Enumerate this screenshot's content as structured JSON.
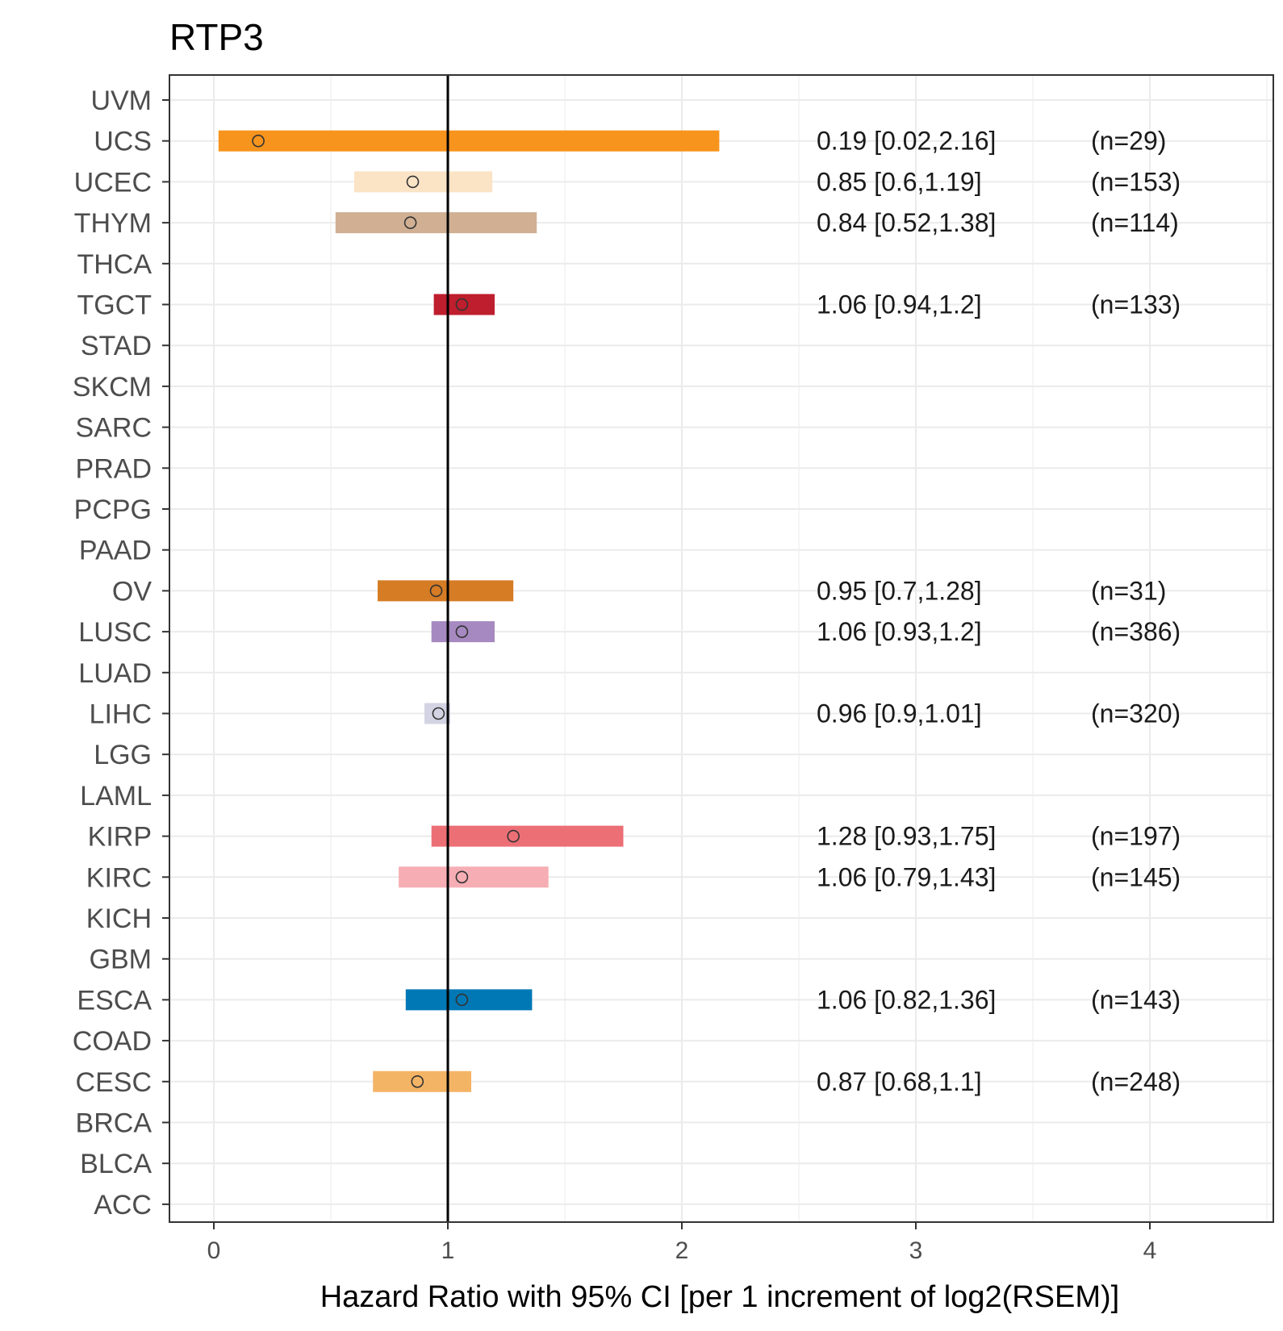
{
  "chart_data": {
    "type": "bar",
    "title": "RTP3",
    "xlabel": "Hazard Ratio with 95% CI [per 1 increment of log2(RSEM)]",
    "xlim": [
      -0.2,
      4.5
    ],
    "xticks": [
      0,
      1,
      2,
      3,
      4
    ],
    "reference_line": 1,
    "grid": true,
    "categories": [
      "UVM",
      "UCS",
      "UCEC",
      "THYM",
      "THCA",
      "TGCT",
      "STAD",
      "SKCM",
      "SARC",
      "PRAD",
      "PCPG",
      "PAAD",
      "OV",
      "LUSC",
      "LUAD",
      "LIHC",
      "LGG",
      "LAML",
      "KIRP",
      "KIRC",
      "KICH",
      "GBM",
      "ESCA",
      "COAD",
      "CESC",
      "BRCA",
      "BLCA",
      "ACC"
    ],
    "series": [
      {
        "category": "UCS",
        "hr": 0.19,
        "lower": 0.02,
        "upper": 2.16,
        "label": "0.19 [0.02,2.16]",
        "n": "(n=29)",
        "color": "#F7941D"
      },
      {
        "category": "UCEC",
        "hr": 0.85,
        "lower": 0.6,
        "upper": 1.19,
        "label": "0.85 [0.6,1.19]",
        "n": "(n=153)",
        "color": "#FBE3C6"
      },
      {
        "category": "THYM",
        "hr": 0.84,
        "lower": 0.52,
        "upper": 1.38,
        "label": "0.84 [0.52,1.38]",
        "n": "(n=114)",
        "color": "#D0AF93"
      },
      {
        "category": "TGCT",
        "hr": 1.06,
        "lower": 0.94,
        "upper": 1.2,
        "label": "1.06 [0.94,1.2]",
        "n": "(n=133)",
        "color": "#BE1E2D"
      },
      {
        "category": "OV",
        "hr": 0.95,
        "lower": 0.7,
        "upper": 1.28,
        "label": "0.95 [0.7,1.28]",
        "n": "(n=31)",
        "color": "#D57C25"
      },
      {
        "category": "LUSC",
        "hr": 1.06,
        "lower": 0.93,
        "upper": 1.2,
        "label": "1.06 [0.93,1.2]",
        "n": "(n=386)",
        "color": "#A689C0"
      },
      {
        "category": "LIHC",
        "hr": 0.96,
        "lower": 0.9,
        "upper": 1.01,
        "label": "0.96 [0.9,1.01]",
        "n": "(n=320)",
        "color": "#D3D3E3"
      },
      {
        "category": "KIRP",
        "hr": 1.28,
        "lower": 0.93,
        "upper": 1.75,
        "label": "1.28 [0.93,1.75]",
        "n": "(n=197)",
        "color": "#EC6F75"
      },
      {
        "category": "KIRC",
        "hr": 1.06,
        "lower": 0.79,
        "upper": 1.43,
        "label": "1.06 [0.79,1.43]",
        "n": "(n=145)",
        "color": "#F6AEB4"
      },
      {
        "category": "ESCA",
        "hr": 1.06,
        "lower": 0.82,
        "upper": 1.36,
        "label": "1.06 [0.82,1.36]",
        "n": "(n=143)",
        "color": "#0078B5"
      },
      {
        "category": "CESC",
        "hr": 0.87,
        "lower": 0.68,
        "upper": 1.1,
        "label": "0.87 [0.68,1.1]",
        "n": "(n=248)",
        "color": "#F4B466"
      }
    ]
  }
}
